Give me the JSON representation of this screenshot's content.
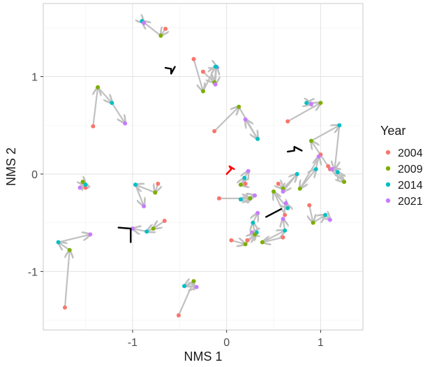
{
  "chart_data": {
    "type": "scatter",
    "xlabel": "NMS 1",
    "ylabel": "NMS 2",
    "xlim": [
      -1.95,
      1.45
    ],
    "ylim": [
      -1.6,
      1.75
    ],
    "x_ticks": [
      -1,
      0,
      1
    ],
    "y_ticks": [
      -1,
      0,
      1
    ],
    "x_tick_labels": [
      "-1",
      "0",
      "1"
    ],
    "y_tick_labels": [
      "-1",
      "0",
      "1"
    ],
    "grid": true,
    "legend": {
      "title": "Year",
      "position": "right",
      "entries": [
        {
          "label": "2004",
          "color": "#F8766D"
        },
        {
          "label": "2009",
          "color": "#7CAE00"
        },
        {
          "label": "2014",
          "color": "#00BFC4"
        },
        {
          "label": "2021",
          "color": "#C77CFF"
        }
      ]
    },
    "arrow_color": "#c0c0c0",
    "trajectories": [
      {
        "points": [
          [
            -0.65,
            1.49
          ],
          [
            -0.7,
            1.42
          ],
          [
            -0.9,
            1.57
          ],
          [
            -0.88,
            1.55
          ]
        ]
      },
      {
        "points": [
          [
            -0.35,
            1.18
          ],
          [
            -0.25,
            0.85
          ],
          [
            -0.12,
            1.1
          ],
          [
            -0.1,
            1.09
          ]
        ]
      },
      {
        "points": [
          [
            -0.25,
            1.05
          ],
          [
            -0.13,
            0.94
          ],
          [
            -0.11,
            1.1
          ],
          [
            -0.12,
            0.92
          ]
        ]
      },
      {
        "points": [
          [
            -1.42,
            0.49
          ],
          [
            -1.37,
            0.89
          ],
          [
            -1.22,
            0.73
          ],
          [
            -1.08,
            0.52
          ]
        ]
      },
      {
        "points": [
          [
            -0.13,
            0.44
          ],
          [
            0.13,
            0.69
          ],
          [
            0.33,
            0.36
          ],
          [
            0.2,
            0.56
          ]
        ]
      },
      {
        "points": [
          [
            0.65,
            0.54
          ],
          [
            1.0,
            0.73
          ],
          [
            0.85,
            0.73
          ],
          [
            0.9,
            0.72
          ]
        ]
      },
      {
        "points": [
          [
            1.08,
            0.08
          ],
          [
            0.9,
            0.34
          ],
          [
            1.2,
            0.5
          ],
          [
            1.15,
            0.05
          ]
        ]
      },
      {
        "points": [
          [
            1.1,
            0.05
          ],
          [
            1.25,
            -0.08
          ],
          [
            1.18,
            0.02
          ],
          [
            1.12,
            0.05
          ]
        ]
      },
      {
        "points": [
          [
            0.2,
            -0.1
          ],
          [
            0.15,
            -0.11
          ],
          [
            0.19,
            -0.04
          ],
          [
            0.23,
            0.03
          ]
        ]
      },
      {
        "points": [
          [
            0.55,
            -0.1
          ],
          [
            0.6,
            -0.15
          ],
          [
            0.75,
            0.0
          ],
          [
            0.6,
            -0.18
          ]
        ]
      },
      {
        "points": [
          [
            1.0,
            0.2
          ],
          [
            0.78,
            -0.15
          ],
          [
            0.95,
            0.05
          ],
          [
            0.98,
            0.18
          ]
        ]
      },
      {
        "points": [
          [
            -0.08,
            -0.25
          ],
          [
            0.25,
            -0.25
          ],
          [
            0.15,
            -0.26
          ],
          [
            0.3,
            -0.22
          ]
        ]
      },
      {
        "points": [
          [
            0.62,
            -0.42
          ],
          [
            0.5,
            -0.18
          ],
          [
            0.65,
            -0.35
          ],
          [
            0.63,
            -0.3
          ]
        ]
      },
      {
        "points": [
          [
            0.88,
            -0.32
          ],
          [
            0.92,
            -0.5
          ],
          [
            1.05,
            -0.42
          ],
          [
            1.1,
            -0.47
          ]
        ]
      },
      {
        "points": [
          [
            0.05,
            -0.68
          ],
          [
            0.2,
            -0.72
          ],
          [
            0.32,
            -0.6
          ],
          [
            0.27,
            -0.6
          ]
        ]
      },
      {
        "points": [
          [
            0.22,
            -0.68
          ],
          [
            0.3,
            -0.62
          ],
          [
            0.28,
            -0.5
          ],
          [
            0.33,
            -0.4
          ]
        ]
      },
      {
        "points": [
          [
            0.6,
            -0.65
          ],
          [
            0.38,
            -0.7
          ],
          [
            0.62,
            -0.58
          ],
          [
            0.6,
            -0.46
          ]
        ]
      },
      {
        "points": [
          [
            -1.5,
            -0.14
          ],
          [
            -1.53,
            -0.08
          ],
          [
            -1.5,
            -0.11
          ],
          [
            -1.56,
            -0.14
          ]
        ]
      },
      {
        "points": [
          [
            -0.73,
            -0.1
          ],
          [
            -0.76,
            -0.19
          ],
          [
            -0.97,
            -0.11
          ],
          [
            -0.88,
            -0.33
          ]
        ]
      },
      {
        "points": [
          [
            -0.66,
            -0.48
          ],
          [
            -0.78,
            -0.56
          ],
          [
            -0.85,
            -0.59
          ],
          [
            -1.0,
            -0.56
          ]
        ]
      },
      {
        "points": [
          [
            -1.72,
            -1.37
          ],
          [
            -1.67,
            -0.78
          ],
          [
            -1.79,
            -0.7
          ],
          [
            -1.45,
            -0.62
          ]
        ]
      },
      {
        "points": [
          [
            -0.51,
            -1.45
          ],
          [
            -0.35,
            -1.1
          ],
          [
            -0.45,
            -1.15
          ],
          [
            -0.32,
            -1.16
          ]
        ]
      }
    ],
    "markers": [
      {
        "points": [
          [
            0.0,
            0.0
          ],
          [
            0.05,
            0.05
          ],
          [
            0.03,
            0.08
          ],
          [
            0.08,
            0.05
          ]
        ],
        "color": "#ff0000"
      },
      {
        "points": [
          [
            -0.65,
            1.09
          ],
          [
            -0.59,
            1.08
          ],
          [
            -0.59,
            1.03
          ],
          [
            -0.55,
            1.1
          ]
        ],
        "color": "#000000"
      },
      {
        "points": [
          [
            0.65,
            0.23
          ],
          [
            0.72,
            0.24
          ],
          [
            0.72,
            0.28
          ],
          [
            0.8,
            0.24
          ]
        ],
        "color": "#000000"
      },
      {
        "points": [
          [
            0.42,
            -0.44
          ],
          [
            0.58,
            -0.36
          ]
        ],
        "color": "#000000"
      },
      {
        "points": [
          [
            -1.15,
            -0.55
          ],
          [
            -1.02,
            -0.56
          ],
          [
            -1.02,
            -0.7
          ]
        ],
        "color": "#000000"
      }
    ]
  }
}
